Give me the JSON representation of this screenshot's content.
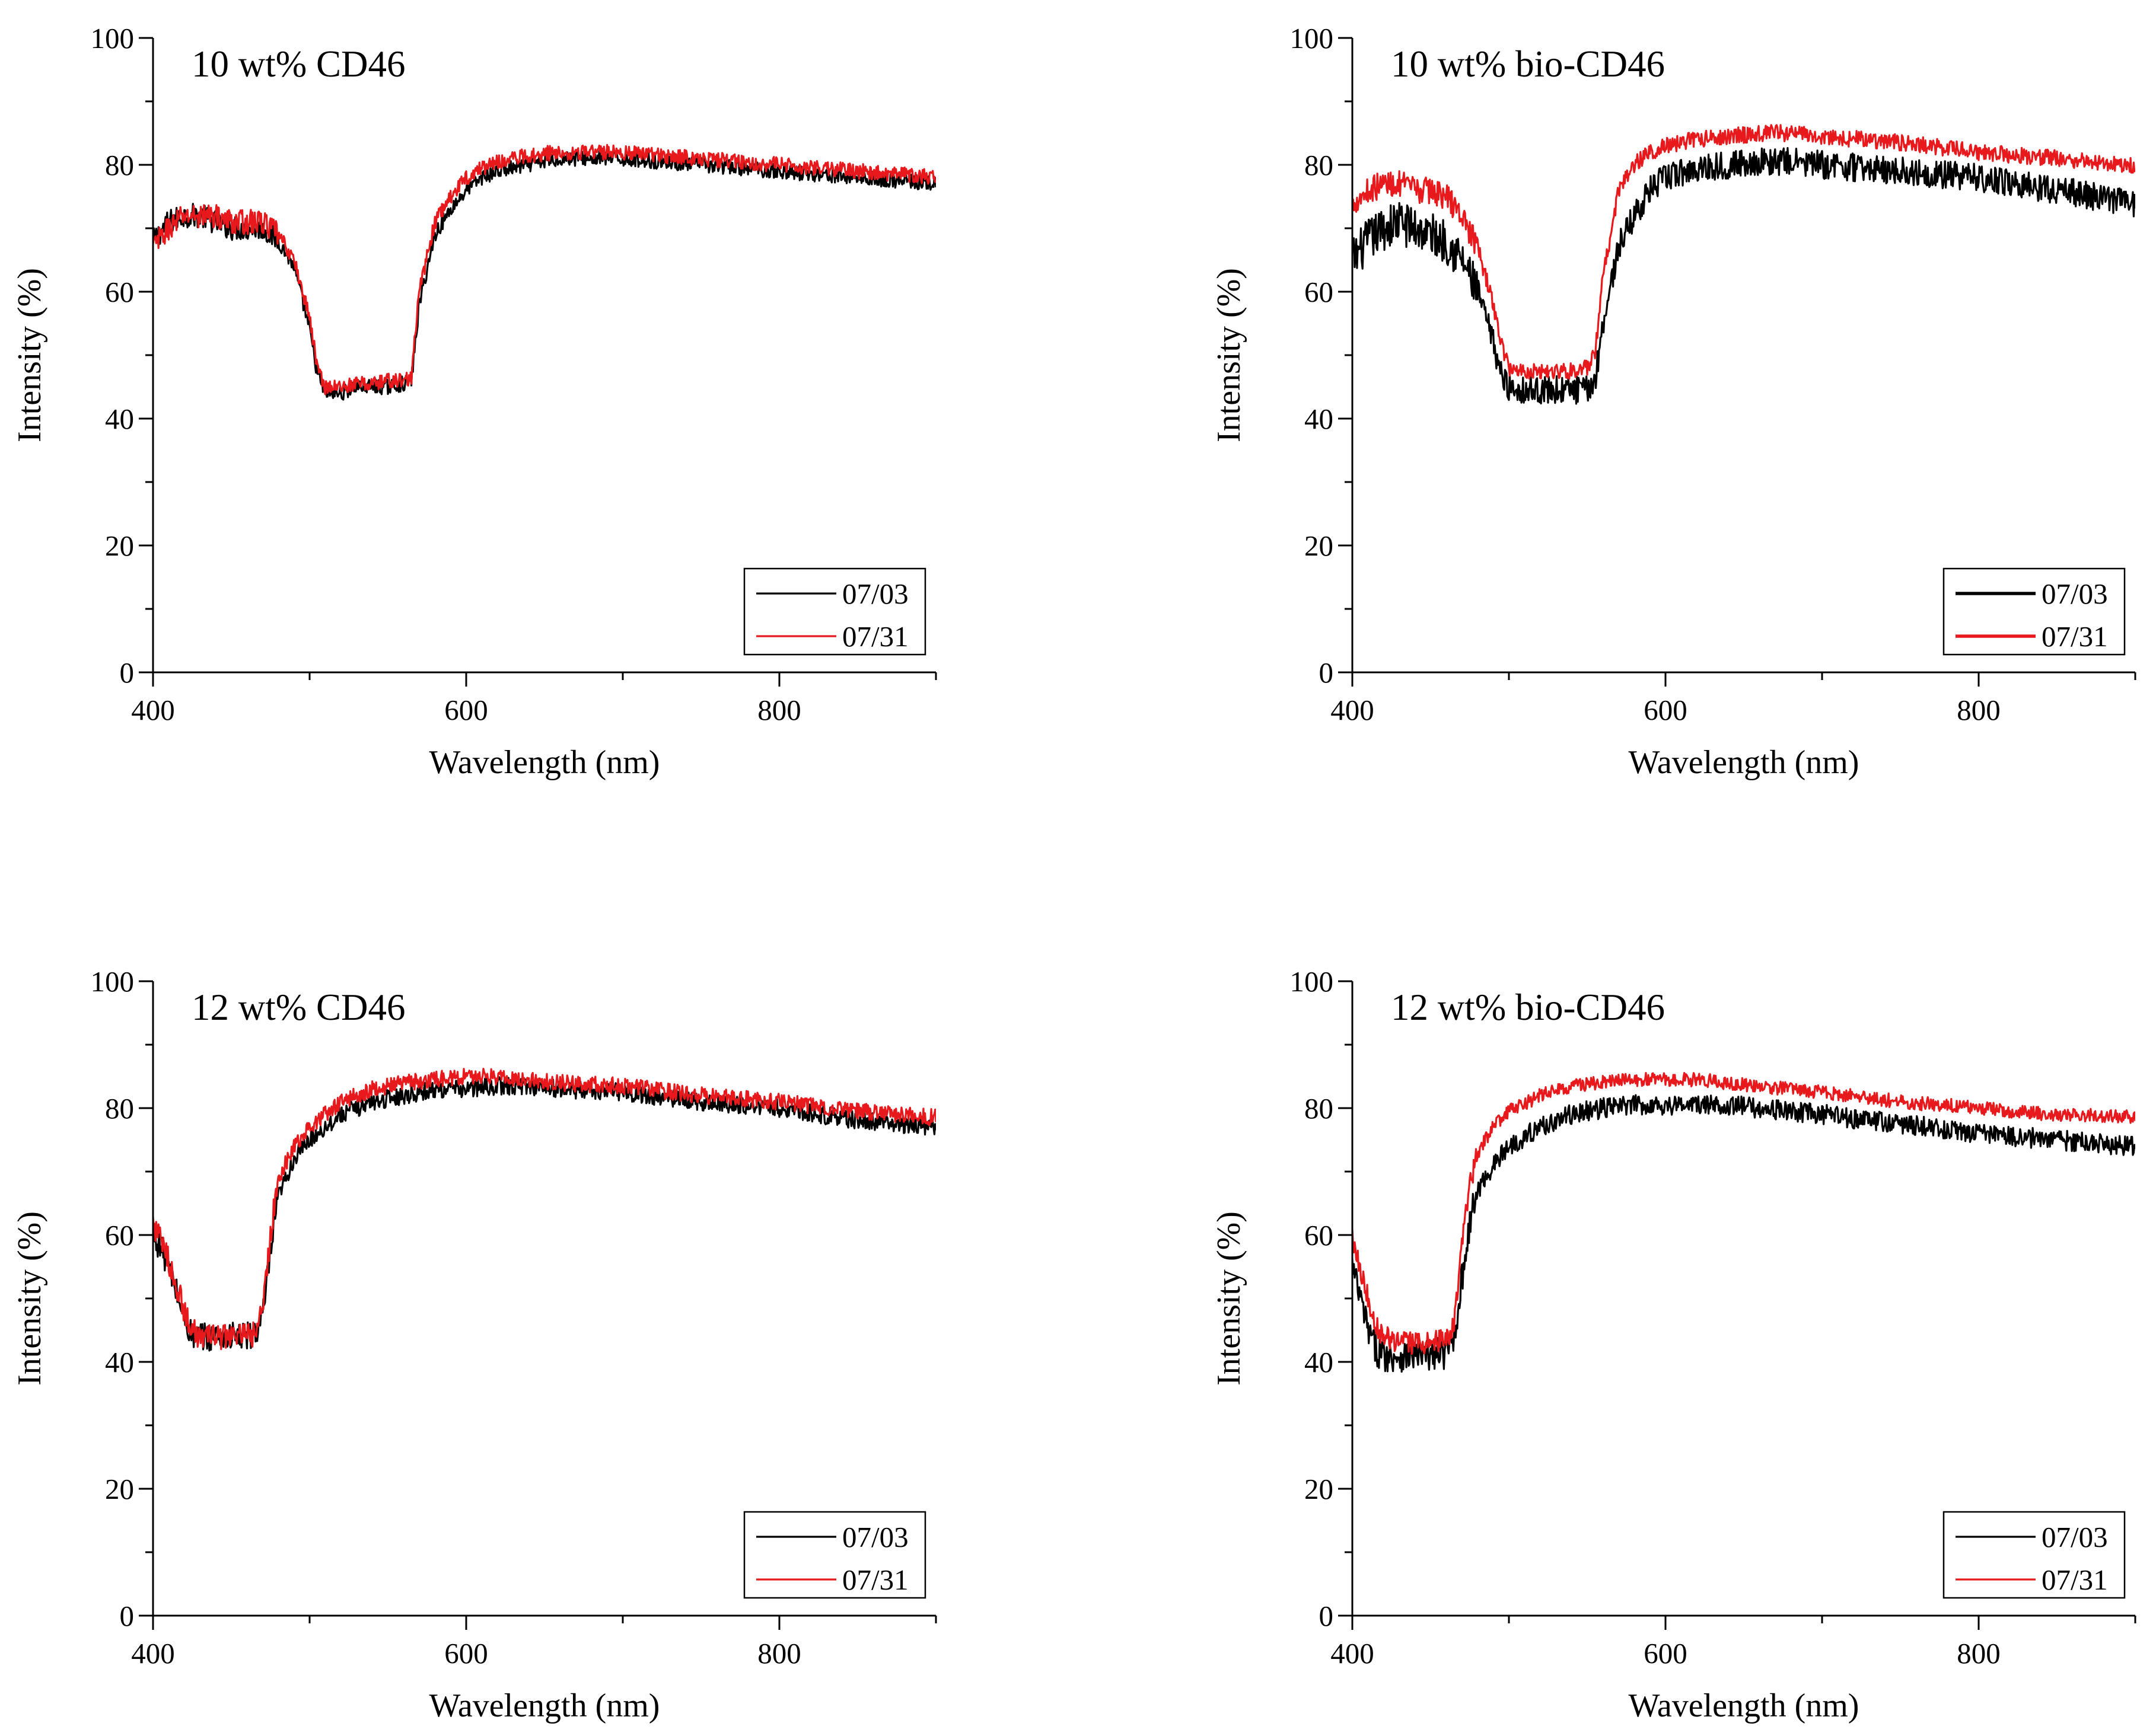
{
  "chart_data": [
    {
      "type": "line",
      "title": "10 wt% CD46",
      "xlabel": "Wavelength (nm)",
      "ylabel": "Intensity (%)",
      "xlim": [
        400,
        900
      ],
      "ylim": [
        0,
        100
      ],
      "xticks": [
        400,
        600,
        800
      ],
      "yticks": [
        0,
        20,
        40,
        60,
        80,
        100
      ],
      "legend_position": "bottom-right",
      "series": [
        {
          "name": "07/03",
          "color": "#000000",
          "noise": 1.2,
          "x": [
            400,
            410,
            420,
            430,
            440,
            450,
            460,
            470,
            480,
            490,
            500,
            505,
            510,
            520,
            530,
            540,
            550,
            560,
            565,
            570,
            580,
            590,
            600,
            610,
            620,
            640,
            660,
            680,
            700,
            750,
            800,
            850,
            900
          ],
          "y": [
            68,
            71,
            72,
            72,
            71,
            70,
            70,
            70,
            68,
            64,
            54,
            47,
            44,
            44,
            45,
            45,
            45,
            45.5,
            46,
            58,
            69,
            73,
            76,
            78,
            79,
            80,
            81,
            81,
            81,
            80,
            79,
            78,
            77
          ]
        },
        {
          "name": "07/31",
          "color": "#e8191c",
          "noise": 1.2,
          "x": [
            400,
            410,
            420,
            430,
            440,
            450,
            460,
            470,
            480,
            490,
            500,
            505,
            510,
            520,
            530,
            540,
            550,
            560,
            565,
            570,
            580,
            590,
            600,
            610,
            620,
            640,
            660,
            680,
            700,
            750,
            800,
            850,
            900
          ],
          "y": [
            67,
            70,
            72,
            72,
            72,
            71,
            71,
            71,
            69,
            65,
            56,
            48,
            45,
            45,
            45.5,
            45.5,
            46,
            46,
            46.5,
            60,
            71,
            75,
            78,
            79.5,
            80.5,
            81.5,
            82,
            82,
            82,
            81,
            80,
            79,
            78
          ]
        }
      ]
    },
    {
      "type": "line",
      "title": "10 wt% bio-CD46",
      "xlabel": "Wavelength (nm)",
      "ylabel": "Intensity (%)",
      "xlim": [
        400,
        900
      ],
      "ylim": [
        0,
        100
      ],
      "xticks": [
        400,
        600,
        800
      ],
      "yticks": [
        0,
        20,
        40,
        60,
        80,
        100
      ],
      "legend_position": "bottom-right",
      "series": [
        {
          "name": "07/03",
          "color": "#000000",
          "noise": 2.2,
          "x": [
            400,
            410,
            420,
            430,
            440,
            450,
            460,
            470,
            480,
            490,
            495,
            500,
            510,
            520,
            530,
            540,
            550,
            555,
            560,
            570,
            580,
            590,
            600,
            620,
            640,
            660,
            680,
            700,
            750,
            800,
            850,
            900
          ],
          "y": [
            65,
            68,
            70,
            71,
            70,
            69,
            68,
            65,
            60,
            52,
            47,
            45,
            44.5,
            44.5,
            44.5,
            44.5,
            44.5,
            46,
            55,
            67,
            72,
            76,
            78,
            79.5,
            80,
            80.5,
            80.5,
            80,
            79,
            78,
            76,
            74
          ]
        },
        {
          "name": "07/31",
          "color": "#e8191c",
          "noise": 1.3,
          "x": [
            400,
            410,
            420,
            430,
            440,
            450,
            460,
            470,
            480,
            490,
            495,
            500,
            510,
            520,
            530,
            540,
            550,
            555,
            560,
            570,
            580,
            590,
            600,
            620,
            640,
            660,
            680,
            700,
            750,
            800,
            850,
            900
          ],
          "y": [
            74,
            76,
            77,
            77,
            76,
            76,
            75,
            72,
            67,
            58,
            52,
            48,
            47.5,
            47.5,
            47.5,
            47.5,
            48,
            50,
            62,
            76,
            80,
            82,
            83,
            84,
            84.5,
            85,
            85,
            84.5,
            83.5,
            82,
            81,
            80
          ]
        }
      ]
    },
    {
      "type": "line",
      "title": "12 wt% CD46",
      "xlabel": "Wavelength (nm)",
      "ylabel": "Intensity (%)",
      "xlim": [
        400,
        900
      ],
      "ylim": [
        0,
        100
      ],
      "xticks": [
        400,
        600,
        800
      ],
      "yticks": [
        0,
        20,
        40,
        60,
        80,
        100
      ],
      "legend_position": "bottom-right",
      "series": [
        {
          "name": "07/03",
          "color": "#000000",
          "noise": 1.4,
          "x": [
            400,
            405,
            410,
            415,
            420,
            425,
            430,
            440,
            450,
            460,
            465,
            470,
            475,
            480,
            490,
            500,
            510,
            520,
            540,
            560,
            580,
            600,
            620,
            640,
            660,
            700,
            750,
            800,
            850,
            900
          ],
          "y": [
            60,
            58,
            55,
            51,
            47,
            44,
            44,
            44,
            44,
            44,
            44.5,
            47,
            57,
            66,
            72,
            75,
            77,
            79,
            81,
            82,
            83,
            83,
            83.5,
            83.5,
            83,
            82.5,
            81,
            80,
            78,
            77
          ]
        },
        {
          "name": "07/31",
          "color": "#e8191c",
          "noise": 1.3,
          "x": [
            400,
            405,
            410,
            415,
            420,
            425,
            430,
            440,
            450,
            460,
            465,
            470,
            475,
            480,
            490,
            500,
            510,
            520,
            540,
            560,
            580,
            600,
            620,
            640,
            660,
            700,
            750,
            800,
            850,
            900
          ],
          "y": [
            62,
            59,
            56,
            52,
            48,
            45,
            44,
            44,
            44,
            44,
            44.5,
            48,
            60,
            69,
            74,
            77,
            79,
            81,
            83,
            84,
            84.5,
            85,
            85,
            84.5,
            84,
            83.5,
            82,
            81,
            79.5,
            78.5
          ]
        }
      ]
    },
    {
      "type": "line",
      "title": "12 wt% bio-CD46",
      "xlabel": "Wavelength (nm)",
      "ylabel": "Intensity (%)",
      "xlim": [
        400,
        900
      ],
      "ylim": [
        0,
        100
      ],
      "xticks": [
        400,
        600,
        800
      ],
      "yticks": [
        0,
        20,
        40,
        60,
        80,
        100
      ],
      "legend_position": "bottom-right",
      "series": [
        {
          "name": "07/03",
          "color": "#000000",
          "noise": 1.6,
          "x": [
            400,
            405,
            410,
            415,
            420,
            430,
            440,
            450,
            460,
            465,
            470,
            475,
            480,
            490,
            500,
            520,
            540,
            560,
            580,
            600,
            620,
            640,
            660,
            700,
            750,
            800,
            850,
            900
          ],
          "y": [
            55,
            50,
            45,
            42,
            41,
            41,
            41,
            41,
            41.5,
            44,
            53,
            62,
            67,
            71,
            74,
            77,
            79,
            80,
            80.5,
            80.5,
            80.5,
            80.5,
            80,
            79,
            77.5,
            76,
            75,
            74
          ]
        },
        {
          "name": "07/31",
          "color": "#e8191c",
          "noise": 1.1,
          "x": [
            400,
            405,
            410,
            415,
            420,
            430,
            440,
            450,
            460,
            465,
            470,
            475,
            480,
            490,
            500,
            520,
            540,
            560,
            580,
            600,
            620,
            640,
            660,
            700,
            750,
            800,
            850,
            900
          ],
          "y": [
            60,
            55,
            50,
            46,
            44,
            43,
            43,
            43,
            43.5,
            46,
            58,
            68,
            73,
            77,
            79.5,
            82,
            83.5,
            84,
            84.5,
            84.5,
            84.5,
            84,
            83.5,
            82.5,
            81,
            80,
            79,
            78.5
          ]
        }
      ]
    }
  ]
}
